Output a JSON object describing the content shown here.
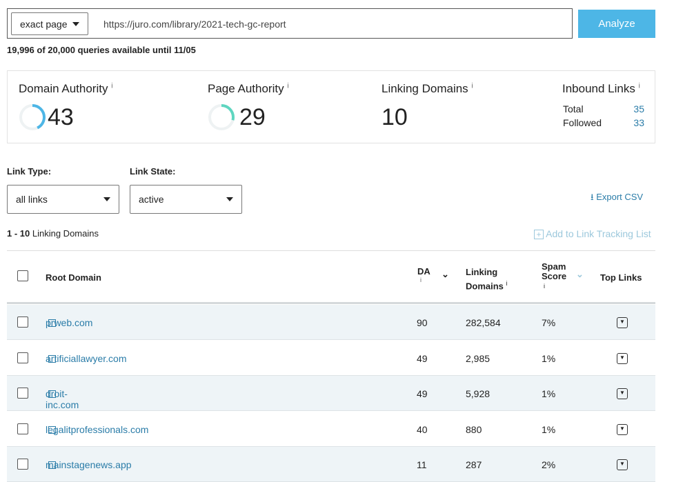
{
  "search": {
    "mode": "exact page",
    "url": "https://juro.com/library/2021-tech-gc-report",
    "analyze": "Analyze"
  },
  "quota": "19,996 of 20,000 queries available until 11/05",
  "metrics": {
    "da_label": "Domain Authority",
    "da": "43",
    "da_value": 43,
    "pa_label": "Page Authority",
    "pa": "29",
    "pa_value": 29,
    "ld_label": "Linking Domains",
    "ld": "10",
    "il_label": "Inbound Links",
    "total_label": "Total",
    "total": "35",
    "followed_label": "Followed",
    "followed": "33",
    "info": "i"
  },
  "filters": {
    "link_type_label": "Link Type:",
    "link_type": "all links",
    "link_state_label": "Link State:",
    "link_state": "active",
    "export": "Export CSV"
  },
  "list": {
    "range": "1 - 10",
    "range_label": "Linking Domains",
    "add": "Add to Link Tracking List"
  },
  "table": {
    "headers": {
      "root": "Root Domain",
      "da": "DA",
      "ld1": "Linking",
      "ld2": "Domains",
      "ss1": "Spam",
      "ss2": "Score",
      "top": "Top Links"
    },
    "rows": [
      {
        "domain": "prweb.com",
        "da": "90",
        "ld": "282,584",
        "spam": "7%"
      },
      {
        "domain": "artificiallawyer.com",
        "da": "49",
        "ld": "2,985",
        "spam": "1%"
      },
      {
        "domain": "droit-inc.com",
        "da": "49",
        "ld": "5,928",
        "spam": "1%"
      },
      {
        "domain": "legalitprofessionals.com",
        "da": "40",
        "ld": "880",
        "spam": "1%"
      },
      {
        "domain": "mainstagenews.app",
        "da": "11",
        "ld": "287",
        "spam": "2%"
      }
    ]
  },
  "colors": {
    "accent": "#4db6e6",
    "da_ring": "#4db6e6",
    "pa_ring": "#5fd6c0",
    "link": "#2a7ca8"
  }
}
